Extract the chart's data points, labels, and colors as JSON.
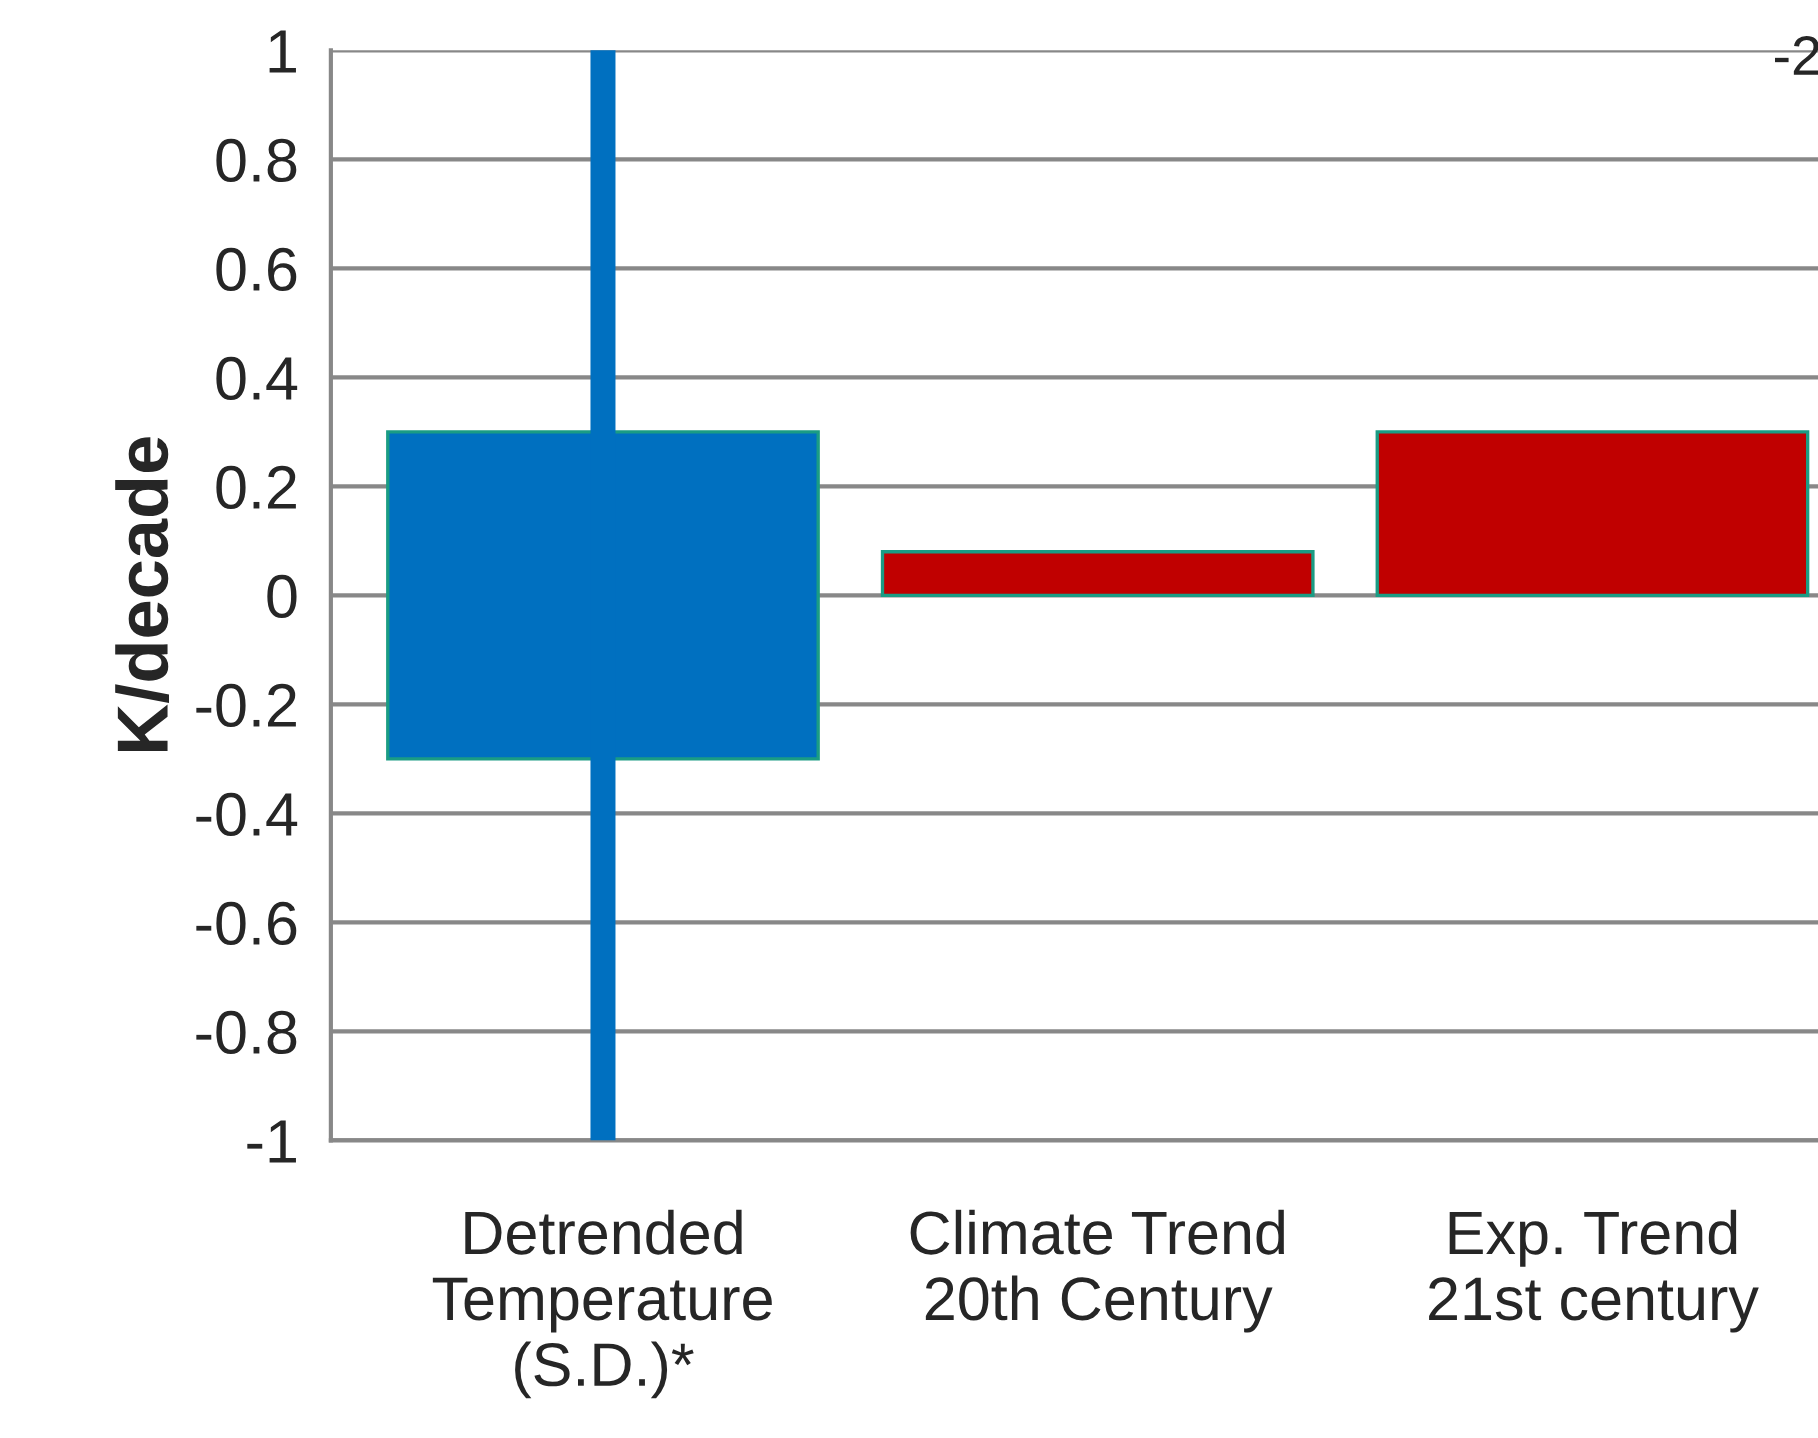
{
  "chart_data": {
    "type": "bar",
    "ylabel": "K/decade",
    "categories": [
      "Detrended\nTemperature\n(S.D.)*",
      "Climate Trend\n20th Century",
      "Exp. Trend\n21st century"
    ],
    "values": [
      0.6,
      0.08,
      0.3
    ],
    "base": [
      -0.3,
      0,
      0
    ],
    "colors": [
      "#0070c0",
      "#c00000",
      "#c00000"
    ],
    "errors": [
      [
        -1,
        1
      ],
      null,
      null
    ],
    "ylim": [
      -1,
      1
    ],
    "yticks": [
      -1,
      -0.8,
      -0.6,
      -0.4,
      -0.2,
      0,
      0.2,
      0.4,
      0.6,
      0.8,
      1
    ],
    "grid": "y",
    "annotations": [
      "-2"
    ]
  }
}
